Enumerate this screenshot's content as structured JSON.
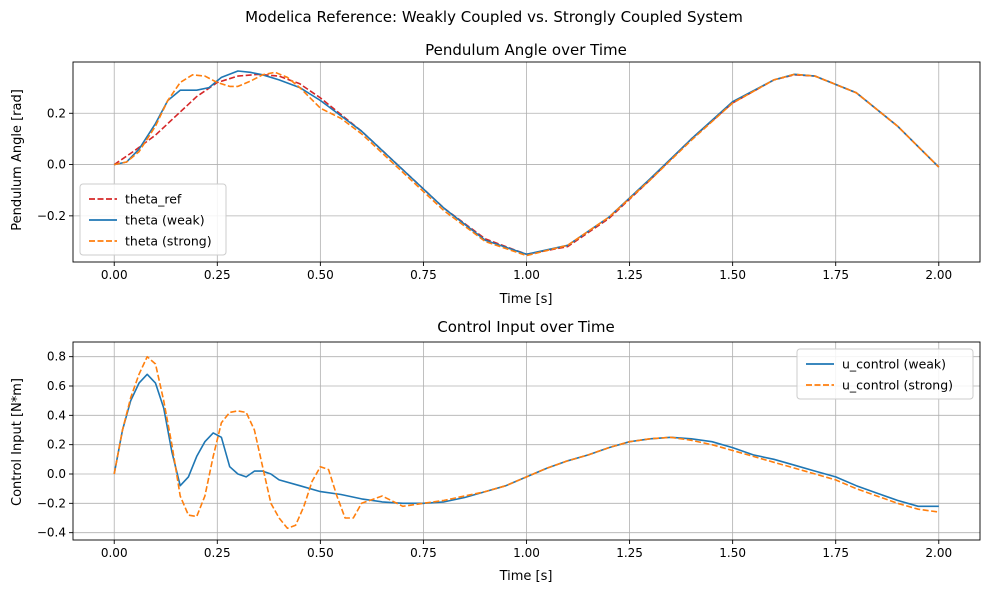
{
  "figure": {
    "suptitle": "Modelica Reference: Weakly Coupled vs. Strongly Coupled System"
  },
  "colors": {
    "ref": "#d62728",
    "weak": "#1f77b4",
    "strong": "#ff7f0e",
    "grid": "#b0b0b0",
    "axes": "#000000"
  },
  "chart_data": [
    {
      "type": "line",
      "title": "Pendulum Angle over Time",
      "xlabel": "Time [s]",
      "ylabel": "Pendulum Angle [rad]",
      "xlim": [
        -0.1,
        2.1
      ],
      "ylim": [
        -0.38,
        0.4
      ],
      "xticks": [
        0.0,
        0.25,
        0.5,
        0.75,
        1.0,
        1.25,
        1.5,
        1.75,
        2.0
      ],
      "xtick_labels": [
        "0.00",
        "0.25",
        "0.50",
        "0.75",
        "1.00",
        "1.25",
        "1.50",
        "1.75",
        "2.00"
      ],
      "yticks": [
        -0.2,
        0.0,
        0.2
      ],
      "ytick_labels": [
        "−0.2",
        "0.0",
        "0.2"
      ],
      "grid": true,
      "legend": "lower-left",
      "series": [
        {
          "name": "theta_ref",
          "style": "dashed",
          "color_key": "ref",
          "x": [
            0.0,
            0.05,
            0.1,
            0.15,
            0.2,
            0.25,
            0.3,
            0.35,
            0.4,
            0.45,
            0.5,
            0.6,
            0.7,
            0.8,
            0.9,
            1.0,
            1.1,
            1.2,
            1.3,
            1.4,
            1.5,
            1.6,
            1.65,
            1.7,
            1.8,
            1.9,
            2.0
          ],
          "y": [
            0.0,
            0.055,
            0.115,
            0.19,
            0.265,
            0.32,
            0.345,
            0.352,
            0.345,
            0.315,
            0.26,
            0.13,
            -0.02,
            -0.17,
            -0.29,
            -0.35,
            -0.32,
            -0.21,
            -0.06,
            0.1,
            0.24,
            0.33,
            0.35,
            0.345,
            0.28,
            0.15,
            -0.01
          ]
        },
        {
          "name": "theta (weak)",
          "style": "solid",
          "color_key": "weak",
          "x": [
            0.0,
            0.03,
            0.06,
            0.1,
            0.13,
            0.16,
            0.2,
            0.23,
            0.26,
            0.3,
            0.33,
            0.36,
            0.4,
            0.45,
            0.5,
            0.6,
            0.7,
            0.8,
            0.9,
            1.0,
            1.1,
            1.2,
            1.3,
            1.4,
            1.5,
            1.6,
            1.65,
            1.7,
            1.8,
            1.9,
            2.0
          ],
          "y": [
            0.0,
            0.01,
            0.06,
            0.16,
            0.25,
            0.29,
            0.29,
            0.3,
            0.34,
            0.365,
            0.36,
            0.35,
            0.33,
            0.3,
            0.25,
            0.13,
            -0.02,
            -0.17,
            -0.295,
            -0.35,
            -0.315,
            -0.205,
            -0.055,
            0.1,
            0.245,
            0.33,
            0.352,
            0.345,
            0.28,
            0.15,
            -0.01
          ]
        },
        {
          "name": "theta (strong)",
          "style": "dashed",
          "color_key": "strong",
          "x": [
            0.0,
            0.03,
            0.06,
            0.1,
            0.13,
            0.16,
            0.19,
            0.22,
            0.25,
            0.28,
            0.3,
            0.33,
            0.36,
            0.39,
            0.42,
            0.45,
            0.5,
            0.55,
            0.6,
            0.7,
            0.8,
            0.9,
            1.0,
            1.1,
            1.2,
            1.3,
            1.4,
            1.5,
            1.6,
            1.65,
            1.7,
            1.8,
            1.9,
            2.0
          ],
          "y": [
            0.0,
            0.01,
            0.05,
            0.15,
            0.25,
            0.32,
            0.35,
            0.345,
            0.32,
            0.305,
            0.305,
            0.325,
            0.35,
            0.36,
            0.34,
            0.3,
            0.22,
            0.18,
            0.12,
            -0.03,
            -0.18,
            -0.3,
            -0.355,
            -0.315,
            -0.205,
            -0.06,
            0.095,
            0.24,
            0.33,
            0.352,
            0.345,
            0.28,
            0.15,
            -0.01
          ]
        }
      ]
    },
    {
      "type": "line",
      "title": "Control Input over Time",
      "xlabel": "Time [s]",
      "ylabel": "Control Input [N*m]",
      "xlim": [
        -0.1,
        2.1
      ],
      "ylim": [
        -0.45,
        0.9
      ],
      "xticks": [
        0.0,
        0.25,
        0.5,
        0.75,
        1.0,
        1.25,
        1.5,
        1.75,
        2.0
      ],
      "xtick_labels": [
        "0.00",
        "0.25",
        "0.50",
        "0.75",
        "1.00",
        "1.25",
        "1.50",
        "1.75",
        "2.00"
      ],
      "yticks": [
        -0.4,
        -0.2,
        0.0,
        0.2,
        0.4,
        0.6,
        0.8
      ],
      "ytick_labels": [
        "−0.4",
        "−0.2",
        "0.0",
        "0.2",
        "0.4",
        "0.6",
        "0.8"
      ],
      "grid": true,
      "legend": "upper-right",
      "series": [
        {
          "name": "u_control (weak)",
          "style": "solid",
          "color_key": "weak",
          "x": [
            0.0,
            0.02,
            0.04,
            0.06,
            0.08,
            0.1,
            0.12,
            0.14,
            0.16,
            0.18,
            0.2,
            0.22,
            0.24,
            0.26,
            0.28,
            0.3,
            0.32,
            0.34,
            0.36,
            0.38,
            0.4,
            0.45,
            0.5,
            0.55,
            0.6,
            0.65,
            0.7,
            0.75,
            0.8,
            0.85,
            0.9,
            0.95,
            1.0,
            1.05,
            1.1,
            1.15,
            1.2,
            1.25,
            1.3,
            1.35,
            1.4,
            1.45,
            1.5,
            1.55,
            1.6,
            1.65,
            1.7,
            1.75,
            1.8,
            1.85,
            1.9,
            1.95,
            2.0
          ],
          "y": [
            0.0,
            0.3,
            0.5,
            0.62,
            0.68,
            0.62,
            0.45,
            0.15,
            -0.08,
            -0.02,
            0.12,
            0.22,
            0.28,
            0.25,
            0.05,
            0.0,
            -0.02,
            0.02,
            0.02,
            0.0,
            -0.04,
            -0.08,
            -0.12,
            -0.14,
            -0.17,
            -0.19,
            -0.2,
            -0.2,
            -0.19,
            -0.16,
            -0.12,
            -0.08,
            -0.02,
            0.04,
            0.09,
            0.13,
            0.18,
            0.22,
            0.24,
            0.25,
            0.24,
            0.22,
            0.18,
            0.13,
            0.1,
            0.06,
            0.02,
            -0.02,
            -0.08,
            -0.13,
            -0.18,
            -0.22,
            -0.22
          ]
        },
        {
          "name": "u_control (strong)",
          "style": "dashed",
          "color_key": "strong",
          "x": [
            0.0,
            0.02,
            0.04,
            0.06,
            0.08,
            0.1,
            0.12,
            0.14,
            0.16,
            0.18,
            0.2,
            0.22,
            0.24,
            0.26,
            0.28,
            0.3,
            0.32,
            0.34,
            0.36,
            0.38,
            0.4,
            0.42,
            0.44,
            0.46,
            0.48,
            0.5,
            0.52,
            0.54,
            0.56,
            0.58,
            0.6,
            0.65,
            0.7,
            0.75,
            0.8,
            0.85,
            0.9,
            0.95,
            1.0,
            1.05,
            1.1,
            1.15,
            1.2,
            1.25,
            1.3,
            1.35,
            1.4,
            1.45,
            1.5,
            1.55,
            1.6,
            1.65,
            1.7,
            1.75,
            1.8,
            1.85,
            1.9,
            1.95,
            2.0
          ],
          "y": [
            0.0,
            0.3,
            0.52,
            0.68,
            0.8,
            0.75,
            0.5,
            0.2,
            -0.15,
            -0.28,
            -0.29,
            -0.15,
            0.12,
            0.35,
            0.42,
            0.43,
            0.42,
            0.3,
            0.05,
            -0.2,
            -0.3,
            -0.37,
            -0.35,
            -0.22,
            -0.05,
            0.05,
            0.03,
            -0.15,
            -0.3,
            -0.3,
            -0.2,
            -0.15,
            -0.22,
            -0.2,
            -0.18,
            -0.15,
            -0.12,
            -0.08,
            -0.02,
            0.04,
            0.09,
            0.13,
            0.18,
            0.22,
            0.24,
            0.25,
            0.23,
            0.2,
            0.16,
            0.12,
            0.08,
            0.04,
            0.0,
            -0.04,
            -0.1,
            -0.15,
            -0.2,
            -0.24,
            -0.26
          ]
        }
      ]
    }
  ]
}
